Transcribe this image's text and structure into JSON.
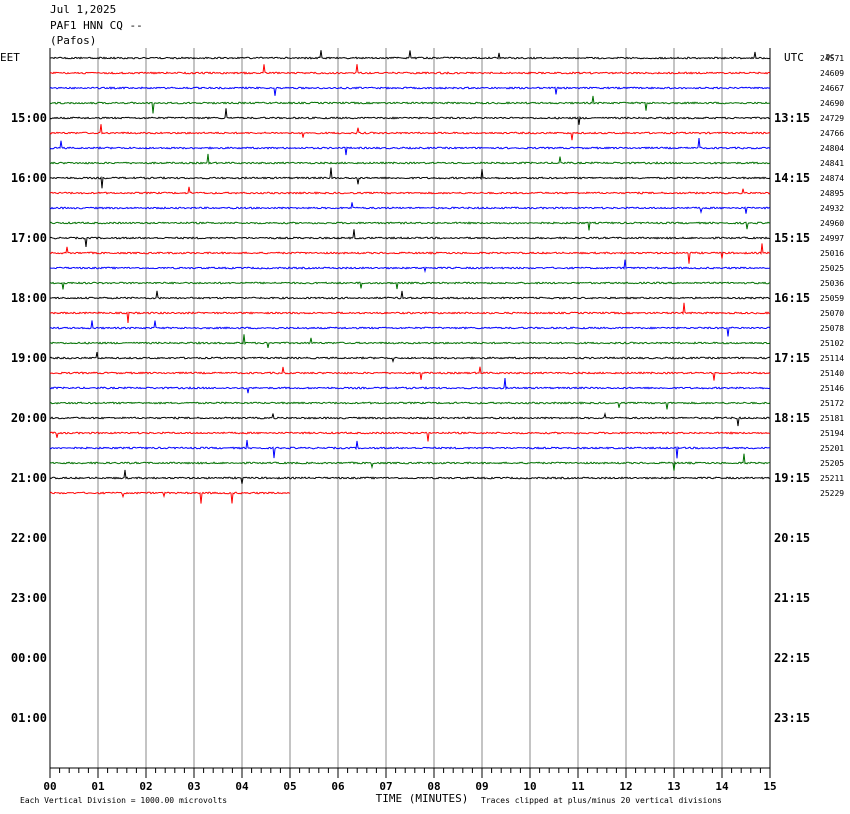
{
  "header": {
    "date": "Jul 1,2025",
    "station": "PAF1 HNN CQ --",
    "location": "(Pafos)"
  },
  "chart_data": {
    "type": "line",
    "left_tz_label": "EET",
    "right_tz_label": "UTC",
    "counts_label": "DC",
    "left_hour_labels": [
      "15:00",
      "16:00",
      "17:00",
      "18:00",
      "19:00",
      "20:00",
      "21:00",
      "22:00",
      "23:00",
      "00:00",
      "01:00"
    ],
    "right_hour_labels": [
      "13:15",
      "14:15",
      "15:15",
      "16:15",
      "17:15",
      "18:15",
      "19:15",
      "20:15",
      "21:15",
      "22:15",
      "23:15"
    ],
    "x_ticks": [
      "00",
      "01",
      "02",
      "03",
      "04",
      "05",
      "06",
      "07",
      "08",
      "09",
      "10",
      "11",
      "12",
      "13",
      "14",
      "15"
    ],
    "xlabel": "TIME (MINUTES)",
    "xlim": [
      0,
      15
    ],
    "trace_offsets": [
      24571,
      24609,
      24667,
      24690,
      24729,
      24766,
      24804,
      24841,
      24874,
      24895,
      24932,
      24960,
      24997,
      25016,
      25025,
      25036,
      25059,
      25070,
      25078,
      25102,
      25114,
      25140,
      25146,
      25172,
      25181,
      25194,
      25201,
      25205,
      25211,
      25229
    ],
    "trace_colors": [
      "#000000",
      "#ff0000",
      "#0000ff",
      "#007000"
    ],
    "last_trace_minutes": 5,
    "grid": true,
    "footer_left": "Each Vertical Division = 1000.00 microvolts",
    "footer_right": "Traces clipped at plus/minus 20 vertical divisions"
  }
}
